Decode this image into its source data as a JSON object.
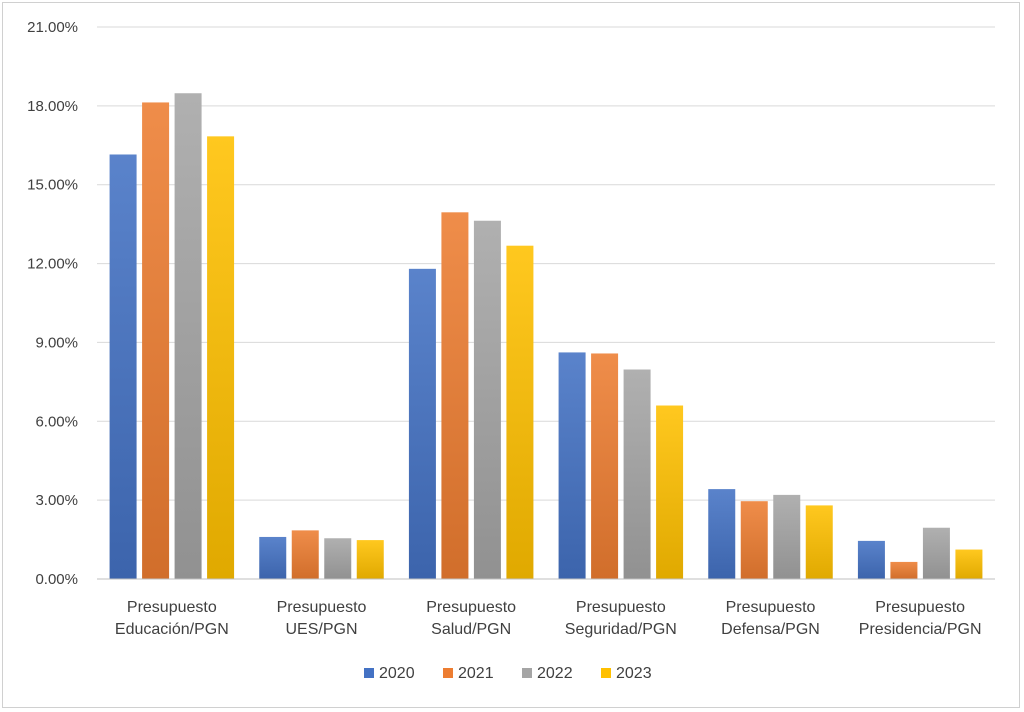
{
  "chart_data": {
    "type": "bar",
    "title": "",
    "xlabel": "",
    "ylabel": "",
    "ylim": [
      0,
      21
    ],
    "y_ticks": [
      "0.00%",
      "3.00%",
      "6.00%",
      "9.00%",
      "12.00%",
      "15.00%",
      "18.00%",
      "21.00%"
    ],
    "grid": true,
    "legend_position": "bottom",
    "categories": [
      [
        "Presupuesto",
        "Educación/PGN"
      ],
      [
        "Presupuesto",
        "UES/PGN"
      ],
      [
        "Presupuesto",
        "Salud/PGN"
      ],
      [
        "Presupuesto",
        "Seguridad/PGN"
      ],
      [
        "Presupuesto",
        "Defensa/PGN"
      ],
      [
        "Presupuesto",
        "Presidencia/PGN"
      ]
    ],
    "series": [
      {
        "name": "2020",
        "color": "#4472C4",
        "values": [
          16.15,
          1.6,
          11.8,
          8.62,
          3.42,
          1.45
        ]
      },
      {
        "name": "2021",
        "color": "#ED7D31",
        "values": [
          18.13,
          1.85,
          13.95,
          8.58,
          2.96,
          0.65
        ]
      },
      {
        "name": "2022",
        "color": "#A5A5A5",
        "values": [
          18.48,
          1.55,
          13.63,
          7.97,
          3.2,
          1.95
        ]
      },
      {
        "name": "2023",
        "color": "#FFC000",
        "values": [
          16.84,
          1.48,
          12.68,
          6.6,
          2.8,
          1.12
        ]
      }
    ]
  }
}
